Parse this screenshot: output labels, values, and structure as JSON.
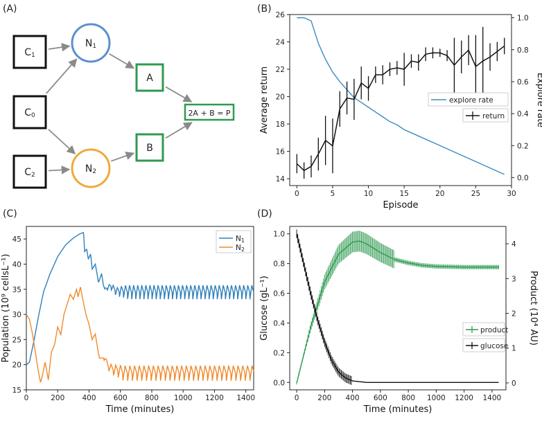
{
  "panels": {
    "a": "(A)",
    "b": "(B)",
    "c": "(C)",
    "d": "(D)"
  },
  "diagram": {
    "nodes": [
      {
        "id": "C1",
        "text": "C",
        "sub": "1",
        "shape": "square",
        "color": "#111111"
      },
      {
        "id": "C0",
        "text": "C",
        "sub": "0",
        "shape": "square",
        "color": "#111111"
      },
      {
        "id": "C2",
        "text": "C",
        "sub": "2",
        "shape": "square",
        "color": "#111111"
      },
      {
        "id": "N1",
        "text": "N",
        "sub": "1",
        "shape": "circle",
        "color": "#5b8fcf"
      },
      {
        "id": "N2",
        "text": "N",
        "sub": "2",
        "shape": "circle",
        "color": "#f0a93c"
      },
      {
        "id": "A",
        "text": "A",
        "sub": "",
        "shape": "square",
        "color": "#2e9a4f"
      },
      {
        "id": "B",
        "text": "B",
        "sub": "",
        "shape": "square",
        "color": "#2e9a4f"
      },
      {
        "id": "P",
        "text": "2A + B = P",
        "sub": "",
        "shape": "rect",
        "color": "#2e9a4f"
      }
    ],
    "edges": [
      [
        "C1",
        "N1"
      ],
      [
        "C0",
        "N1"
      ],
      [
        "C0",
        "N2"
      ],
      [
        "C2",
        "N2"
      ],
      [
        "N1",
        "A"
      ],
      [
        "N2",
        "B"
      ],
      [
        "A",
        "P"
      ],
      [
        "B",
        "P"
      ]
    ]
  },
  "chart_data": [
    {
      "panel": "B",
      "type": "line",
      "xlabel": "Episode",
      "ylabel": "Average return",
      "y2label": "Explore rate",
      "xlim": [
        -1,
        30
      ],
      "ylim": [
        13.5,
        26
      ],
      "y2lim": [
        -0.05,
        1.02
      ],
      "xticks": [
        0,
        5,
        10,
        15,
        20,
        25,
        30
      ],
      "yticks": [
        14,
        16,
        18,
        20,
        22,
        24,
        26
      ],
      "y2ticks": [
        0.0,
        0.2,
        0.4,
        0.6,
        0.8,
        1.0
      ],
      "y2ticklabels": [
        "0.0",
        "0.2",
        "0.4",
        "0.6",
        "0.8",
        "1.0"
      ],
      "legend": "right",
      "series": [
        {
          "name": "explore rate",
          "axis": "y2",
          "color": "#3b8bc2",
          "x": [
            0,
            1,
            2,
            3,
            4,
            5,
            6,
            7,
            8,
            9,
            10,
            11,
            12,
            13,
            14,
            15,
            16,
            17,
            18,
            19,
            20,
            21,
            22,
            23,
            24,
            25,
            26,
            27,
            28,
            29
          ],
          "values": [
            1.0,
            1.0,
            0.98,
            0.84,
            0.74,
            0.66,
            0.6,
            0.55,
            0.5,
            0.47,
            0.44,
            0.41,
            0.38,
            0.35,
            0.33,
            0.3,
            0.28,
            0.26,
            0.24,
            0.22,
            0.2,
            0.18,
            0.16,
            0.14,
            0.12,
            0.1,
            0.08,
            0.06,
            0.04,
            0.02
          ]
        },
        {
          "name": "return",
          "axis": "y",
          "color": "#111111",
          "x": [
            0,
            1,
            2,
            3,
            4,
            5,
            6,
            7,
            8,
            9,
            10,
            11,
            12,
            13,
            14,
            15,
            16,
            17,
            18,
            19,
            20,
            21,
            22,
            23,
            24,
            25,
            26,
            27,
            28,
            29
          ],
          "values": [
            15.1,
            14.6,
            14.9,
            15.8,
            16.8,
            16.4,
            19.1,
            19.9,
            19.8,
            21.0,
            20.6,
            21.6,
            21.6,
            22.0,
            22.1,
            22.0,
            22.6,
            22.5,
            23.1,
            23.2,
            23.2,
            23.0,
            22.3,
            22.9,
            23.4,
            22.2,
            22.6,
            22.9,
            23.3,
            23.7
          ],
          "err": [
            0.7,
            0.6,
            0.8,
            1.2,
            1.8,
            2.0,
            1.3,
            1.2,
            1.5,
            1.2,
            0.9,
            0.6,
            0.7,
            0.5,
            0.5,
            1.2,
            0.5,
            0.6,
            0.5,
            0.4,
            0.3,
            0.4,
            2.0,
            1.2,
            1.1,
            2.3,
            2.5,
            1.0,
            0.7,
            0.6
          ]
        }
      ]
    },
    {
      "panel": "C",
      "type": "line",
      "xlabel": "Time (minutes)",
      "ylabel": "Population (10⁹ cellsL⁻¹)",
      "xlim": [
        0,
        1450
      ],
      "ylim": [
        15,
        47.5
      ],
      "xticks": [
        0,
        200,
        400,
        600,
        800,
        1000,
        1200,
        1400
      ],
      "yticks": [
        15,
        20,
        25,
        30,
        35,
        40,
        45
      ],
      "legend": "top-right",
      "series": [
        {
          "name": "N",
          "sub": "1",
          "color": "#2f80bb",
          "keypoints": [
            [
              0,
              20
            ],
            [
              20,
              20.5
            ],
            [
              50,
              25
            ],
            [
              80,
              30
            ],
            [
              110,
              34.5
            ],
            [
              150,
              38
            ],
            [
              200,
              41.5
            ],
            [
              250,
              43.8
            ],
            [
              300,
              45.2
            ],
            [
              340,
              46.0
            ],
            [
              365,
              46.3
            ],
            [
              372,
              42.5
            ],
            [
              385,
              43.0
            ],
            [
              395,
              41
            ],
            [
              410,
              42
            ],
            [
              420,
              39
            ],
            [
              440,
              40
            ],
            [
              460,
              36.5
            ],
            [
              480,
              38.5
            ],
            [
              500,
              35
            ],
            [
              540,
              36.5
            ],
            [
              580,
              34.5
            ],
            [
              640,
              35.5
            ],
            [
              1450,
              34.5
            ]
          ],
          "osc_after": 450,
          "osc_period": 26,
          "osc_amp": 1.5,
          "osc_center": 34.3
        },
        {
          "name": "N",
          "sub": "2",
          "color": "#f08a2c",
          "keypoints": [
            [
              0,
              30
            ],
            [
              20,
              29
            ],
            [
              40,
              26
            ],
            [
              60,
              22
            ],
            [
              75,
              19
            ],
            [
              90,
              16.5
            ],
            [
              100,
              17.5
            ],
            [
              120,
              20.5
            ],
            [
              140,
              17
            ],
            [
              160,
              22.5
            ],
            [
              180,
              24
            ],
            [
              200,
              27.5
            ],
            [
              220,
              26
            ],
            [
              240,
              30
            ],
            [
              260,
              32
            ],
            [
              280,
              34
            ],
            [
              300,
              33
            ],
            [
              320,
              35
            ],
            [
              330,
              33.5
            ],
            [
              345,
              35.5
            ],
            [
              360,
              33
            ],
            [
              380,
              30
            ],
            [
              400,
              28
            ],
            [
              420,
              25
            ],
            [
              440,
              27
            ],
            [
              460,
              23
            ],
            [
              480,
              22
            ],
            [
              500,
              23.5
            ],
            [
              520,
              21
            ],
            [
              560,
              20
            ],
            [
              600,
              21
            ],
            [
              640,
              19.5
            ],
            [
              700,
              19
            ],
            [
              1450,
              18
            ]
          ],
          "osc_after": 420,
          "osc_period": 30,
          "osc_amp": 1.6,
          "osc_center": 18.2
        }
      ]
    },
    {
      "panel": "D",
      "type": "line",
      "xlabel": "Time (minutes)",
      "ylabel": "Glucose (gL⁻¹)",
      "y2label": "Product (10⁴ AU)",
      "xlim": [
        -50,
        1500
      ],
      "ylim": [
        -0.05,
        1.05
      ],
      "y2lim": [
        -0.2,
        4.5
      ],
      "xticks": [
        0,
        200,
        400,
        600,
        800,
        1000,
        1200,
        1400
      ],
      "yticks": [
        0.0,
        0.2,
        0.4,
        0.6,
        0.8,
        1.0
      ],
      "yticklabels": [
        "0.0",
        "0.2",
        "0.4",
        "0.6",
        "0.8",
        "1.0"
      ],
      "y2ticks": [
        0,
        1,
        2,
        3,
        4
      ],
      "legend": "right",
      "series": [
        {
          "name": "product",
          "axis": "y2",
          "color": "#2e9a4f",
          "errorbars": true,
          "keypoints": [
            [
              0,
              0
            ],
            [
              100,
              1.6
            ],
            [
              200,
              2.9
            ],
            [
              300,
              3.7
            ],
            [
              400,
              4.05
            ],
            [
              450,
              4.08
            ],
            [
              500,
              4.0
            ],
            [
              600,
              3.75
            ],
            [
              700,
              3.55
            ],
            [
              800,
              3.45
            ],
            [
              900,
              3.38
            ],
            [
              1000,
              3.35
            ],
            [
              1200,
              3.33
            ],
            [
              1450,
              3.33
            ]
          ],
          "err_peak": 0.3
        },
        {
          "name": "glucose",
          "axis": "y",
          "color": "#111111",
          "errorbars": true,
          "keypoints": [
            [
              0,
              1.0
            ],
            [
              50,
              0.8
            ],
            [
              100,
              0.6
            ],
            [
              150,
              0.42
            ],
            [
              200,
              0.27
            ],
            [
              250,
              0.15
            ],
            [
              300,
              0.07
            ],
            [
              350,
              0.03
            ],
            [
              400,
              0.01
            ],
            [
              500,
              0.0
            ],
            [
              1450,
              0.0
            ]
          ],
          "err_peak": 0.03
        }
      ]
    }
  ]
}
